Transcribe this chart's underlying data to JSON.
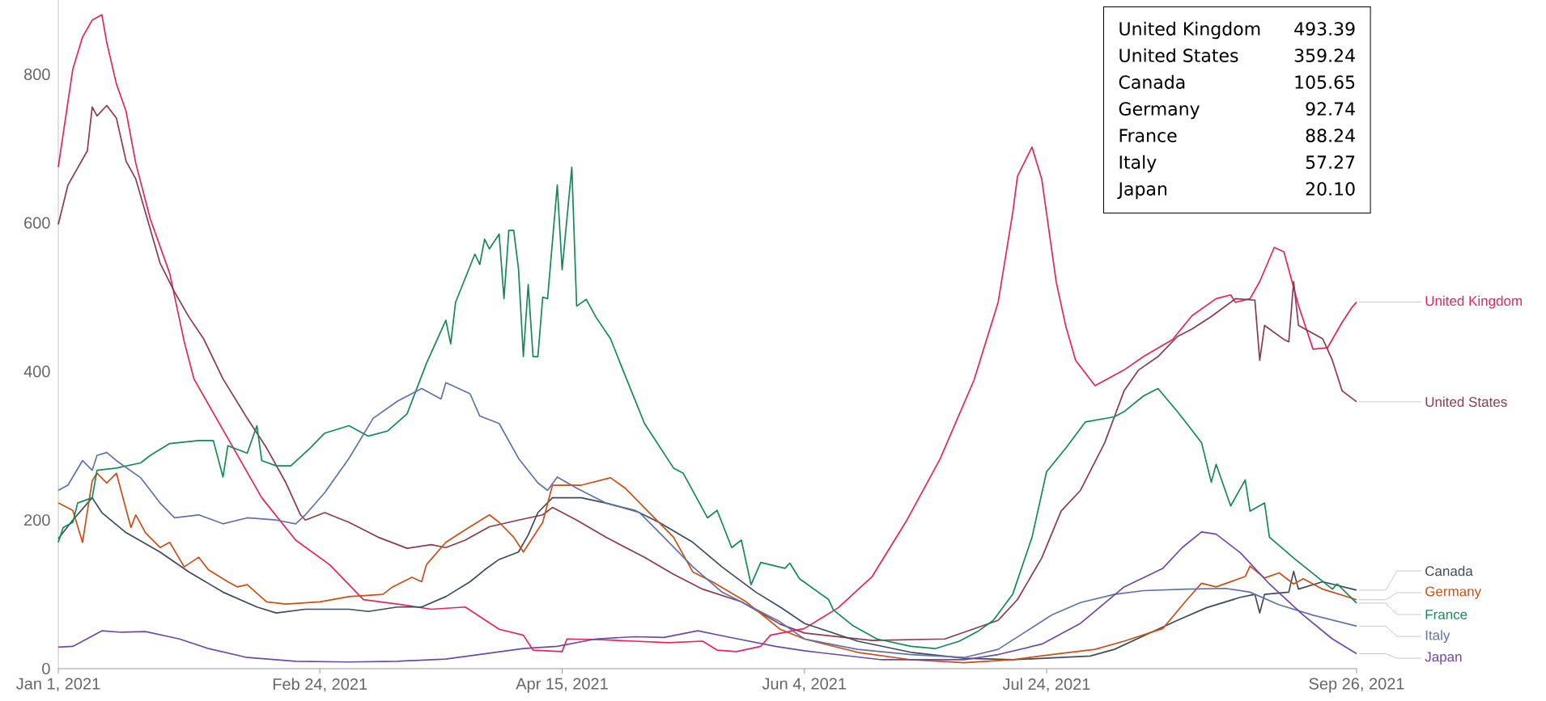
{
  "chart_data": {
    "type": "line",
    "xlim": [
      "2021-01-01",
      "2021-09-26"
    ],
    "ylim": [
      0,
      900
    ],
    "xticks": [
      {
        "value": "2021-01-01",
        "label": "Jan 1, 2021"
      },
      {
        "value": "2021-02-24",
        "label": "Feb 24, 2021"
      },
      {
        "value": "2021-04-15",
        "label": "Apr 15, 2021"
      },
      {
        "value": "2021-06-04",
        "label": "Jun 4, 2021"
      },
      {
        "value": "2021-07-24",
        "label": "Jul 24, 2021"
      },
      {
        "value": "2021-09-26",
        "label": "Sep 26, 2021"
      }
    ],
    "yticks": [
      0,
      200,
      400,
      600,
      800
    ],
    "series": [
      {
        "name": "United Kingdom",
        "color": "#e6245c",
        "x": [
          "2021-01-01",
          "2021-01-04",
          "2021-01-06",
          "2021-01-08",
          "2021-01-10",
          "2021-01-11",
          "2021-01-13",
          "2021-01-15",
          "2021-01-17",
          "2021-01-20",
          "2021-01-24",
          "2021-01-27",
          "2021-01-29",
          "2021-02-05",
          "2021-02-12",
          "2021-02-19",
          "2021-02-26",
          "2021-03-05",
          "2021-03-12",
          "2021-03-19",
          "2021-03-26",
          "2021-04-02",
          "2021-04-07",
          "2021-04-09",
          "2021-04-15",
          "2021-04-16",
          "2021-04-23",
          "2021-04-30",
          "2021-05-07",
          "2021-05-14",
          "2021-05-17",
          "2021-05-21",
          "2021-05-26",
          "2021-05-28",
          "2021-06-04",
          "2021-06-11",
          "2021-06-18",
          "2021-06-25",
          "2021-07-02",
          "2021-07-09",
          "2021-07-14",
          "2021-07-17",
          "2021-07-18",
          "2021-07-21",
          "2021-07-23",
          "2021-07-26",
          "2021-07-28",
          "2021-07-30",
          "2021-08-03",
          "2021-08-09",
          "2021-08-13",
          "2021-08-19",
          "2021-08-23",
          "2021-08-28",
          "2021-08-31",
          "2021-09-01",
          "2021-09-04",
          "2021-09-06",
          "2021-09-09",
          "2021-09-11",
          "2021-09-14",
          "2021-09-17",
          "2021-09-20",
          "2021-09-23",
          "2021-09-25",
          "2021-09-26"
        ],
        "values": [
          675,
          807,
          850,
          873,
          880,
          843,
          787,
          750,
          680,
          605,
          532,
          440,
          390,
          310,
          230,
          173,
          140,
          93,
          87,
          80,
          83,
          53,
          45,
          25,
          23,
          40,
          39,
          37,
          35,
          37,
          25,
          23,
          30,
          45,
          54,
          82,
          124,
          198,
          282,
          388,
          493,
          613,
          663,
          702,
          659,
          520,
          460,
          415,
          381,
          402,
          420,
          443,
          475,
          498,
          503,
          493,
          498,
          521,
          567,
          561,
          489,
          430,
          432,
          466,
          486,
          493.39
        ]
      },
      {
        "name": "United States",
        "color": "#8b3a4f",
        "x": [
          "2021-01-01",
          "2021-01-03",
          "2021-01-07",
          "2021-01-08",
          "2021-01-09",
          "2021-01-11",
          "2021-01-13",
          "2021-01-15",
          "2021-01-17",
          "2021-01-22",
          "2021-01-25",
          "2021-01-28",
          "2021-01-31",
          "2021-02-04",
          "2021-02-09",
          "2021-02-13",
          "2021-02-17",
          "2021-02-20",
          "2021-02-21",
          "2021-02-25",
          "2021-03-02",
          "2021-03-08",
          "2021-03-14",
          "2021-03-19",
          "2021-03-22",
          "2021-03-26",
          "2021-03-31",
          "2021-04-06",
          "2021-04-11",
          "2021-04-13",
          "2021-04-18",
          "2021-04-24",
          "2021-05-02",
          "2021-05-08",
          "2021-05-14",
          "2021-05-22",
          "2021-05-30",
          "2021-06-04",
          "2021-06-18",
          "2021-07-03",
          "2021-07-14",
          "2021-07-18",
          "2021-07-23",
          "2021-07-27",
          "2021-07-31",
          "2021-08-05",
          "2021-08-09",
          "2021-08-12",
          "2021-08-16",
          "2021-08-20",
          "2021-08-23",
          "2021-08-27",
          "2021-09-01",
          "2021-09-05",
          "2021-09-06",
          "2021-09-07",
          "2021-09-11",
          "2021-09-12",
          "2021-09-13",
          "2021-09-14",
          "2021-09-19",
          "2021-09-21",
          "2021-09-23",
          "2021-09-26"
        ],
        "values": [
          598,
          651,
          697,
          756,
          744,
          758,
          741,
          683,
          659,
          546,
          507,
          473,
          444,
          390,
          337,
          297,
          250,
          207,
          200,
          210,
          197,
          177,
          162,
          167,
          163,
          173,
          191,
          200,
          207,
          217,
          200,
          177,
          150,
          127,
          107,
          90,
          60,
          48,
          38,
          40,
          65,
          93,
          149,
          212,
          240,
          304,
          374,
          402,
          420,
          447,
          457,
          474,
          498,
          496,
          415,
          462,
          443,
          440,
          521,
          462,
          444,
          415,
          374,
          359.24
        ]
      },
      {
        "name": "Canada",
        "color": "#3f4b5b",
        "x": [
          "2021-01-01",
          "2021-01-04",
          "2021-01-08",
          "2021-01-10",
          "2021-01-15",
          "2021-01-22",
          "2021-01-28",
          "2021-02-04",
          "2021-02-11",
          "2021-02-15",
          "2021-02-21",
          "2021-03-02",
          "2021-03-06",
          "2021-03-12",
          "2021-03-17",
          "2021-03-22",
          "2021-03-27",
          "2021-03-30",
          "2021-04-02",
          "2021-04-06",
          "2021-04-08",
          "2021-04-10",
          "2021-04-13",
          "2021-04-19",
          "2021-04-24",
          "2021-04-30",
          "2021-05-05",
          "2021-05-12",
          "2021-05-18",
          "2021-05-25",
          "2021-05-30",
          "2021-06-04",
          "2021-06-15",
          "2021-06-26",
          "2021-07-07",
          "2021-07-17",
          "2021-08-02",
          "2021-08-07",
          "2021-08-13",
          "2021-08-20",
          "2021-08-26",
          "2021-09-02",
          "2021-09-05",
          "2021-09-06",
          "2021-09-07",
          "2021-09-12",
          "2021-09-13",
          "2021-09-14",
          "2021-09-19",
          "2021-09-26"
        ],
        "values": [
          175,
          200,
          230,
          210,
          183,
          157,
          130,
          103,
          83,
          75,
          80,
          80,
          77,
          83,
          83,
          97,
          117,
          133,
          147,
          157,
          180,
          210,
          230,
          230,
          223,
          213,
          197,
          170,
          137,
          103,
          83,
          61,
          37,
          22,
          14,
          12,
          17,
          26,
          44,
          65,
          82,
          96,
          100,
          75,
          100,
          103,
          131,
          107,
          117,
          105.65
        ]
      },
      {
        "name": "Germany",
        "color": "#c94f17",
        "x": [
          "2021-01-01",
          "2021-01-04",
          "2021-01-06",
          "2021-01-08",
          "2021-01-09",
          "2021-01-11",
          "2021-01-13",
          "2021-01-16",
          "2021-01-17",
          "2021-01-19",
          "2021-01-22",
          "2021-01-24",
          "2021-01-27",
          "2021-01-30",
          "2021-02-01",
          "2021-02-05",
          "2021-02-07",
          "2021-02-09",
          "2021-02-13",
          "2021-02-17",
          "2021-02-24",
          "2021-03-02",
          "2021-03-09",
          "2021-03-11",
          "2021-03-15",
          "2021-03-17",
          "2021-03-18",
          "2021-03-22",
          "2021-03-26",
          "2021-03-31",
          "2021-04-02",
          "2021-04-05",
          "2021-04-07",
          "2021-04-09",
          "2021-04-11",
          "2021-04-13",
          "2021-04-19",
          "2021-04-25",
          "2021-04-28",
          "2021-05-03",
          "2021-05-08",
          "2021-05-12",
          "2021-05-16",
          "2021-05-23",
          "2021-05-30",
          "2021-06-04",
          "2021-06-15",
          "2021-06-26",
          "2021-07-07",
          "2021-07-17",
          "2021-07-25",
          "2021-08-03",
          "2021-08-09",
          "2021-08-17",
          "2021-08-22",
          "2021-08-25",
          "2021-08-28",
          "2021-09-03",
          "2021-09-04",
          "2021-09-07",
          "2021-09-10",
          "2021-09-13",
          "2021-09-15",
          "2021-09-19",
          "2021-09-26"
        ],
        "values": [
          223,
          213,
          170,
          253,
          263,
          250,
          263,
          190,
          207,
          183,
          163,
          170,
          137,
          150,
          133,
          117,
          110,
          113,
          90,
          87,
          90,
          97,
          100,
          110,
          123,
          117,
          140,
          170,
          187,
          207,
          197,
          177,
          157,
          177,
          197,
          247,
          247,
          257,
          243,
          210,
          177,
          130,
          117,
          90,
          53,
          40,
          22,
          12,
          8,
          12,
          19,
          26,
          37,
          54,
          93,
          115,
          110,
          124,
          138,
          122,
          129,
          114,
          121,
          107,
          92.74
        ]
      },
      {
        "name": "France",
        "color": "#138a57",
        "x": [
          "2021-01-01",
          "2021-01-02",
          "2021-01-04",
          "2021-01-05",
          "2021-01-08",
          "2021-01-09",
          "2021-01-13",
          "2021-01-18",
          "2021-01-20",
          "2021-01-24",
          "2021-01-30",
          "2021-02-02",
          "2021-02-04",
          "2021-02-05",
          "2021-02-09",
          "2021-02-11",
          "2021-02-12",
          "2021-02-15",
          "2021-02-18",
          "2021-02-22",
          "2021-02-25",
          "2021-03-02",
          "2021-03-06",
          "2021-03-10",
          "2021-03-14",
          "2021-03-18",
          "2021-03-22",
          "2021-03-23",
          "2021-03-24",
          "2021-03-28",
          "2021-03-29",
          "2021-03-30",
          "2021-03-31",
          "2021-04-02",
          "2021-04-03",
          "2021-04-04",
          "2021-04-05",
          "2021-04-06",
          "2021-04-07",
          "2021-04-08",
          "2021-04-09",
          "2021-04-10",
          "2021-04-11",
          "2021-04-12",
          "2021-04-14",
          "2021-04-15",
          "2021-04-17",
          "2021-04-18",
          "2021-04-20",
          "2021-04-22",
          "2021-04-25",
          "2021-04-27",
          "2021-05-02",
          "2021-05-08",
          "2021-05-10",
          "2021-05-15",
          "2021-05-17",
          "2021-05-20",
          "2021-05-22",
          "2021-05-24",
          "2021-05-26",
          "2021-05-31",
          "2021-06-01",
          "2021-06-03",
          "2021-06-09",
          "2021-06-10",
          "2021-06-14",
          "2021-06-19",
          "2021-06-26",
          "2021-07-01",
          "2021-07-06",
          "2021-07-10",
          "2021-07-13",
          "2021-07-17",
          "2021-07-21",
          "2021-07-24",
          "2021-07-28",
          "2021-08-01",
          "2021-08-07",
          "2021-08-09",
          "2021-08-13",
          "2021-08-16",
          "2021-08-20",
          "2021-08-23",
          "2021-08-25",
          "2021-08-27",
          "2021-08-28",
          "2021-08-31",
          "2021-09-03",
          "2021-09-04",
          "2021-09-07",
          "2021-09-08",
          "2021-09-13",
          "2021-09-17",
          "2021-09-21",
          "2021-09-22",
          "2021-09-26"
        ],
        "values": [
          170,
          190,
          197,
          223,
          230,
          267,
          270,
          277,
          287,
          303,
          307,
          307,
          258,
          300,
          290,
          327,
          280,
          273,
          273,
          297,
          317,
          327,
          313,
          320,
          343,
          411,
          469,
          437,
          493,
          558,
          544,
          578,
          565,
          585,
          498,
          590,
          590,
          538,
          420,
          517,
          420,
          420,
          500,
          498,
          651,
          537,
          675,
          488,
          497,
          473,
          444,
          411,
          330,
          270,
          263,
          203,
          213,
          163,
          173,
          113,
          143,
          135,
          142,
          121,
          93,
          79,
          58,
          40,
          30,
          27,
          37,
          51,
          65,
          100,
          177,
          265,
          297,
          332,
          339,
          346,
          367,
          377,
          346,
          321,
          304,
          251,
          275,
          219,
          254,
          212,
          223,
          177,
          149,
          128,
          107,
          114,
          88.24
        ]
      },
      {
        "name": "Italy",
        "color": "#6072a8",
        "x": [
          "2021-01-01",
          "2021-01-03",
          "2021-01-06",
          "2021-01-08",
          "2021-01-09",
          "2021-01-11",
          "2021-01-13",
          "2021-01-18",
          "2021-01-22",
          "2021-01-25",
          "2021-01-30",
          "2021-02-04",
          "2021-02-09",
          "2021-02-15",
          "2021-02-19",
          "2021-02-21",
          "2021-02-25",
          "2021-03-02",
          "2021-03-07",
          "2021-03-12",
          "2021-03-17",
          "2021-03-21",
          "2021-03-22",
          "2021-03-27",
          "2021-03-29",
          "2021-04-02",
          "2021-04-06",
          "2021-04-10",
          "2021-04-12",
          "2021-04-14",
          "2021-04-18",
          "2021-04-24",
          "2021-05-01",
          "2021-05-06",
          "2021-05-12",
          "2021-05-18",
          "2021-05-25",
          "2021-05-30",
          "2021-06-04",
          "2021-06-15",
          "2021-06-26",
          "2021-07-07",
          "2021-07-14",
          "2021-07-20",
          "2021-07-25",
          "2021-07-31",
          "2021-08-07",
          "2021-08-13",
          "2021-08-22",
          "2021-08-30",
          "2021-09-04",
          "2021-09-10",
          "2021-09-17",
          "2021-09-26"
        ],
        "values": [
          240,
          247,
          280,
          267,
          287,
          291,
          280,
          257,
          223,
          203,
          207,
          195,
          203,
          200,
          195,
          207,
          237,
          283,
          337,
          360,
          377,
          363,
          385,
          370,
          340,
          330,
          283,
          250,
          240,
          258,
          243,
          223,
          210,
          177,
          137,
          103,
          80,
          63,
          40,
          26,
          19,
          15,
          26,
          51,
          72,
          89,
          100,
          105,
          107,
          108,
          103,
          86,
          72,
          57.27
        ]
      },
      {
        "name": "Japan",
        "color": "#6c4aa8",
        "x": [
          "2021-01-01",
          "2021-01-04",
          "2021-01-10",
          "2021-01-14",
          "2021-01-19",
          "2021-01-26",
          "2021-02-01",
          "2021-02-09",
          "2021-02-19",
          "2021-03-02",
          "2021-03-12",
          "2021-03-22",
          "2021-03-30",
          "2021-04-07",
          "2021-04-14",
          "2021-04-22",
          "2021-04-30",
          "2021-05-06",
          "2021-05-13",
          "2021-05-19",
          "2021-05-29",
          "2021-06-04",
          "2021-06-20",
          "2021-07-07",
          "2021-07-14",
          "2021-07-23",
          "2021-07-31",
          "2021-08-09",
          "2021-08-17",
          "2021-08-21",
          "2021-08-25",
          "2021-08-28",
          "2021-09-02",
          "2021-09-08",
          "2021-09-15",
          "2021-09-21",
          "2021-09-26"
        ],
        "values": [
          29,
          30,
          51,
          49,
          50,
          40,
          27,
          15,
          10,
          9,
          10,
          13,
          20,
          27,
          30,
          40,
          43,
          42,
          51,
          43,
          30,
          24,
          12,
          12,
          19,
          33,
          61,
          110,
          135,
          163,
          184,
          181,
          156,
          114,
          72,
          40,
          20.1
        ]
      }
    ],
    "annotations": [
      "493.39",
      "359.24",
      "105.65",
      "92.74",
      "88.24",
      "57.27",
      "20.10"
    ]
  }
}
